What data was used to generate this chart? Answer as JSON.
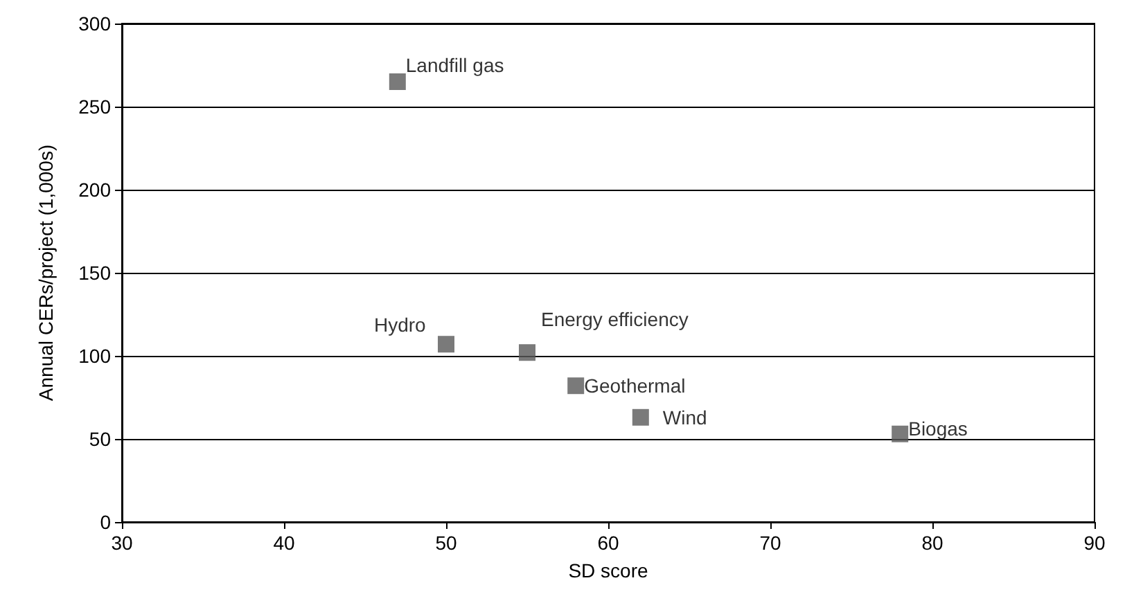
{
  "chart_data": {
    "type": "scatter",
    "xlabel": "SD score",
    "ylabel": "Annual CERs/project (1,000s)",
    "x": [
      47,
      50,
      55,
      58,
      62,
      78
    ],
    "values": [
      265,
      107,
      102,
      82,
      63,
      53
    ],
    "color": "#595959",
    "marker": "square",
    "xlim": [
      30,
      90
    ],
    "xticks": [
      30,
      40,
      50,
      60,
      70,
      80,
      90
    ],
    "ylim": [
      0,
      300
    ],
    "yticks": [
      0,
      50,
      100,
      150,
      200,
      250,
      300
    ],
    "grid": "y",
    "annotations": [
      {
        "text": "Landfill gas",
        "x": 47,
        "y": 265
      },
      {
        "text": "Hydro",
        "x": 50,
        "y": 107
      },
      {
        "text": "Energy efficiency",
        "x": 55,
        "y": 102
      },
      {
        "text": "Geothermal",
        "x": 58,
        "y": 82
      },
      {
        "text": "Wind",
        "x": 62,
        "y": 63
      },
      {
        "text": "Biogas",
        "x": 78,
        "y": 53
      }
    ]
  }
}
